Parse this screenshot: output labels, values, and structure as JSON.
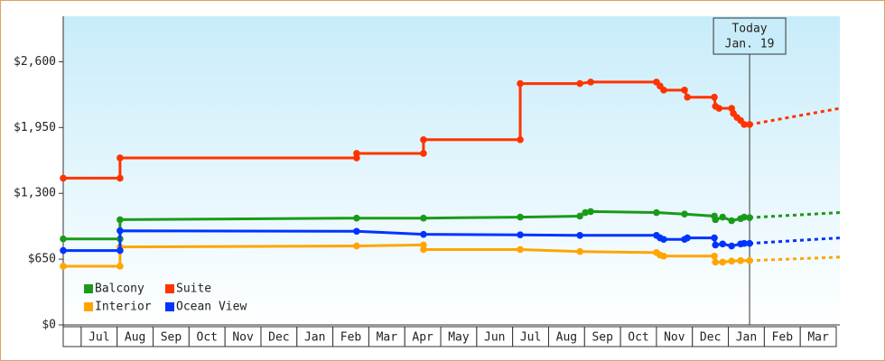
{
  "chart_data": {
    "type": "step-line",
    "categories": [
      null,
      "Jul",
      "Aug",
      "Sep",
      "Oct",
      "Nov",
      "Dec",
      "Jan",
      "Feb",
      "Mar",
      "Apr",
      "May",
      "Jun",
      "Jul",
      "Aug",
      "Sep",
      "Oct",
      "Nov",
      "Dec",
      "Jan",
      "Feb",
      "Mar"
    ],
    "xlim": [
      -0.5,
      21.1
    ],
    "ylim": [
      0,
      3050
    ],
    "yticks": [
      {
        "value": 0,
        "label": "$0"
      },
      {
        "value": 650,
        "label": "$650"
      },
      {
        "value": 1300,
        "label": "$1,300"
      },
      {
        "value": 1950,
        "label": "$1,950"
      },
      {
        "value": 2600,
        "label": "$2,600"
      }
    ],
    "annotation": {
      "x": 18.59,
      "lines": [
        "Today",
        "Jan. 19"
      ]
    },
    "forecast_x": [
      18.59,
      21.1
    ],
    "series": [
      {
        "name": "Balcony",
        "color": "#1a9a1a",
        "x": [
          -0.5,
          1.08,
          1.08,
          7.66,
          9.52,
          12.21,
          13.87,
          14.02,
          14.17,
          16.0,
          16.78,
          17.61,
          17.64,
          17.84,
          18.09,
          18.34,
          18.44,
          18.59
        ],
        "values": [
          850,
          850,
          1040,
          1055,
          1055,
          1065,
          1075,
          1110,
          1120,
          1110,
          1095,
          1075,
          1040,
          1065,
          1030,
          1050,
          1065,
          1060
        ],
        "forecast": [
          1060,
          1110
        ]
      },
      {
        "name": "Suite",
        "color": "#ff3300",
        "x": [
          -0.5,
          1.08,
          1.08,
          7.66,
          7.66,
          9.52,
          9.52,
          12.21,
          12.21,
          13.87,
          14.17,
          16.0,
          16.1,
          16.2,
          16.78,
          16.86,
          17.61,
          17.64,
          17.74,
          18.09,
          18.14,
          18.24,
          18.34,
          18.44,
          18.59
        ],
        "values": [
          1450,
          1450,
          1650,
          1650,
          1695,
          1695,
          1830,
          1830,
          2385,
          2385,
          2400,
          2400,
          2360,
          2320,
          2320,
          2250,
          2250,
          2160,
          2140,
          2140,
          2090,
          2050,
          2020,
          1980,
          1980
        ],
        "forecast": [
          1980,
          2140
        ]
      },
      {
        "name": "Interior",
        "color": "#ffa500",
        "x": [
          -0.5,
          1.08,
          1.08,
          7.66,
          9.52,
          9.52,
          12.21,
          13.87,
          16.0,
          16.1,
          16.2,
          17.61,
          17.64,
          17.84,
          18.09,
          18.34,
          18.59
        ],
        "values": [
          580,
          580,
          770,
          780,
          790,
          745,
          745,
          725,
          715,
          690,
          680,
          680,
          620,
          620,
          630,
          635,
          635
        ],
        "forecast": [
          635,
          670
        ]
      },
      {
        "name": "Ocean View",
        "color": "#0033ff",
        "x": [
          -0.5,
          1.08,
          1.08,
          7.66,
          9.52,
          12.21,
          13.87,
          16.0,
          16.1,
          16.2,
          16.78,
          16.86,
          17.61,
          17.64,
          17.84,
          18.09,
          18.34,
          18.44,
          18.59
        ],
        "values": [
          735,
          735,
          930,
          925,
          895,
          890,
          885,
          885,
          860,
          845,
          845,
          860,
          860,
          790,
          800,
          780,
          800,
          805,
          805
        ],
        "forecast": [
          805,
          860
        ]
      }
    ]
  }
}
